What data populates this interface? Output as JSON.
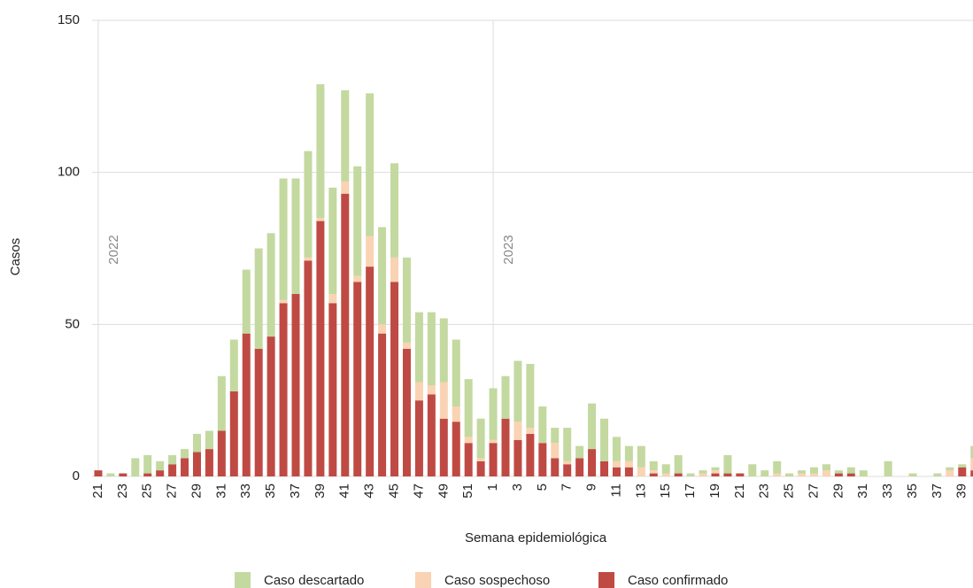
{
  "chart_data": {
    "type": "bar",
    "stacked": true,
    "x_label": "Semana epidemiológica",
    "y_label": "Casos",
    "annotations": [
      "2022",
      "2023"
    ],
    "categories": [
      "21",
      null,
      "23",
      null,
      "25",
      null,
      "27",
      null,
      "29",
      null,
      "31",
      null,
      "33",
      null,
      "35",
      null,
      "37",
      null,
      "39",
      null,
      "41",
      null,
      "43",
      null,
      "45",
      null,
      "47",
      null,
      "49",
      null,
      "51",
      null,
      "1",
      null,
      "3",
      null,
      "5",
      null,
      "7",
      null,
      "9",
      null,
      "11",
      null,
      "13",
      null,
      "15",
      null,
      "17",
      null,
      "19",
      null,
      "21",
      null,
      "23",
      null,
      "25",
      null,
      "27",
      null,
      "29",
      null,
      "31",
      null,
      "33",
      null,
      "35",
      null,
      "37",
      null,
      "39",
      null
    ],
    "series": [
      {
        "name": "Caso confirmado",
        "color": "#bf4a44",
        "values": [
          2,
          0,
          1,
          0,
          1,
          2,
          4,
          6,
          8,
          9,
          15,
          28,
          47,
          42,
          46,
          57,
          60,
          71,
          84,
          57,
          93,
          64,
          69,
          47,
          64,
          42,
          25,
          27,
          19,
          18,
          11,
          5,
          11,
          19,
          12,
          14,
          11,
          6,
          4,
          6,
          9,
          5,
          3,
          3,
          0,
          1,
          0,
          1,
          0,
          0,
          1,
          1,
          1,
          0,
          0,
          0,
          0,
          0,
          0,
          0,
          1,
          1,
          0,
          0,
          0,
          0,
          0,
          0,
          0,
          0,
          3,
          2
        ]
      },
      {
        "name": "Caso sospechoso",
        "color": "#f9d3b3",
        "values": [
          0,
          0,
          0,
          0,
          0,
          0,
          0,
          0,
          0,
          0,
          0,
          0,
          0,
          0,
          0,
          1,
          0,
          1,
          1,
          3,
          4,
          2,
          10,
          3,
          8,
          2,
          6,
          3,
          12,
          5,
          2,
          1,
          1,
          0,
          6,
          2,
          0,
          5,
          1,
          0,
          0,
          0,
          2,
          2,
          3,
          1,
          1,
          0,
          0,
          1,
          1,
          0,
          0,
          0,
          0,
          1,
          0,
          1,
          1,
          2,
          0,
          0,
          0,
          0,
          0,
          0,
          0,
          0,
          0,
          2,
          0,
          4
        ]
      },
      {
        "name": "Caso descartado",
        "color": "#c3d9a0",
        "values": [
          0,
          1,
          0,
          6,
          6,
          3,
          3,
          3,
          6,
          6,
          18,
          17,
          21,
          33,
          34,
          40,
          38,
          35,
          44,
          35,
          30,
          36,
          47,
          32,
          31,
          28,
          23,
          24,
          21,
          22,
          19,
          13,
          17,
          14,
          20,
          21,
          12,
          5,
          11,
          4,
          15,
          14,
          8,
          5,
          7,
          3,
          3,
          6,
          1,
          1,
          1,
          6,
          0,
          4,
          2,
          4,
          1,
          1,
          2,
          2,
          1,
          2,
          2,
          0,
          5,
          0,
          1,
          0,
          1,
          1,
          1,
          4
        ]
      }
    ],
    "ylim": [
      0,
      150
    ],
    "yticks": [
      0,
      50,
      100,
      150
    ],
    "grid": true,
    "legend": "bottom"
  }
}
